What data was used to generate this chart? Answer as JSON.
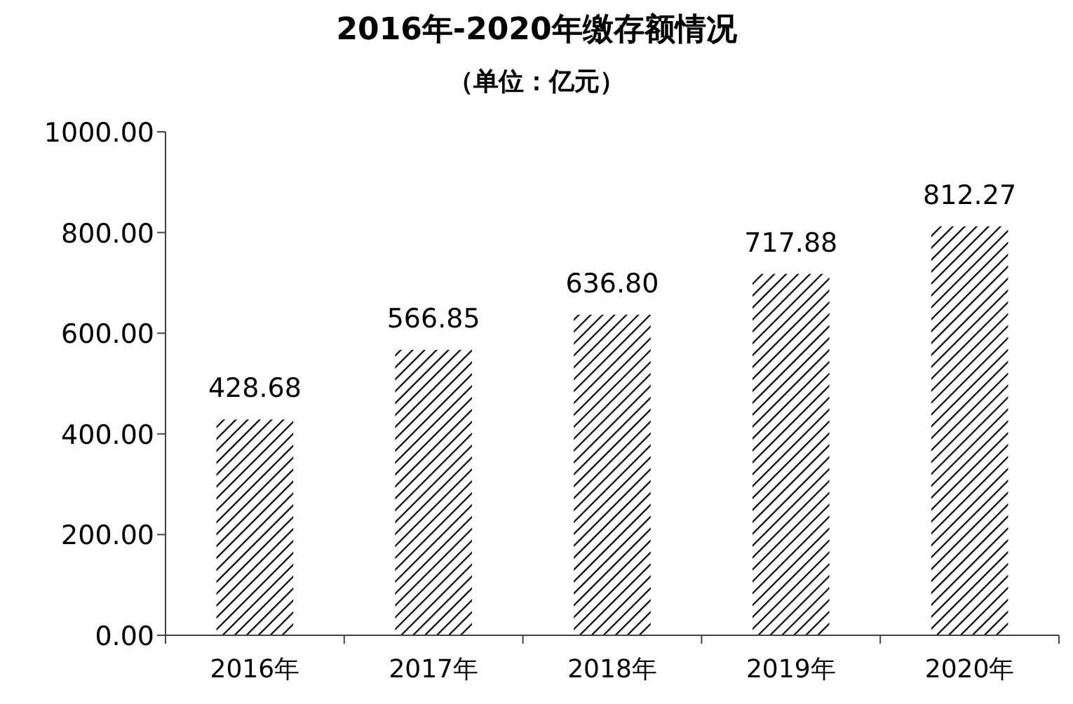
{
  "chart_data": {
    "type": "bar",
    "title": "2016年-2020年缴存额情况",
    "subtitle": "（单位：亿元）",
    "categories": [
      "2016年",
      "2017年",
      "2018年",
      "2019年",
      "2020年"
    ],
    "values": [
      428.68,
      566.85,
      636.8,
      717.88,
      812.27
    ],
    "value_labels": [
      "428.68",
      "566.85",
      "636.80",
      "717.88",
      "812.27"
    ],
    "color": "#000000",
    "ylim": [
      0,
      1000
    ],
    "yticks": [
      {
        "value": 0,
        "label": "0.00"
      },
      {
        "value": 200,
        "label": "200.00"
      },
      {
        "value": 400,
        "label": "400.00"
      },
      {
        "value": 600,
        "label": "600.00"
      },
      {
        "value": 800,
        "label": "800.00"
      },
      {
        "value": 1000,
        "label": "1000.00"
      }
    ],
    "grid": false
  }
}
